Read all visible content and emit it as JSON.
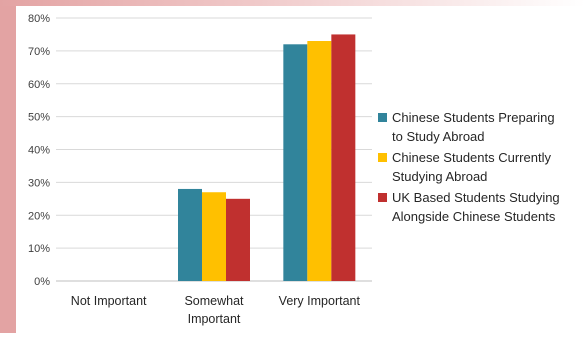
{
  "chart_data": {
    "type": "bar",
    "categories": [
      [
        "Not Important"
      ],
      [
        "Somewhat",
        "Important"
      ],
      [
        "Very Important"
      ]
    ],
    "series": [
      {
        "name": [
          "Chinese Students Preparing",
          "to Study Abroad"
        ],
        "color": "#31849b",
        "values": [
          0,
          28,
          72
        ]
      },
      {
        "name": [
          "Chinese Students Currently",
          "Studying Abroad"
        ],
        "color": "#ffc000",
        "values": [
          0,
          27,
          73
        ]
      },
      {
        "name": [
          "UK Based Students Studying",
          "Alongside Chinese Students"
        ],
        "color": "#c0302f",
        "values": [
          0,
          25,
          75
        ]
      }
    ],
    "ylim": [
      0,
      80
    ],
    "yticks": [
      "0%",
      "10%",
      "20%",
      "30%",
      "40%",
      "50%",
      "60%",
      "70%",
      "80%"
    ],
    "grid": true,
    "legend": "right"
  }
}
